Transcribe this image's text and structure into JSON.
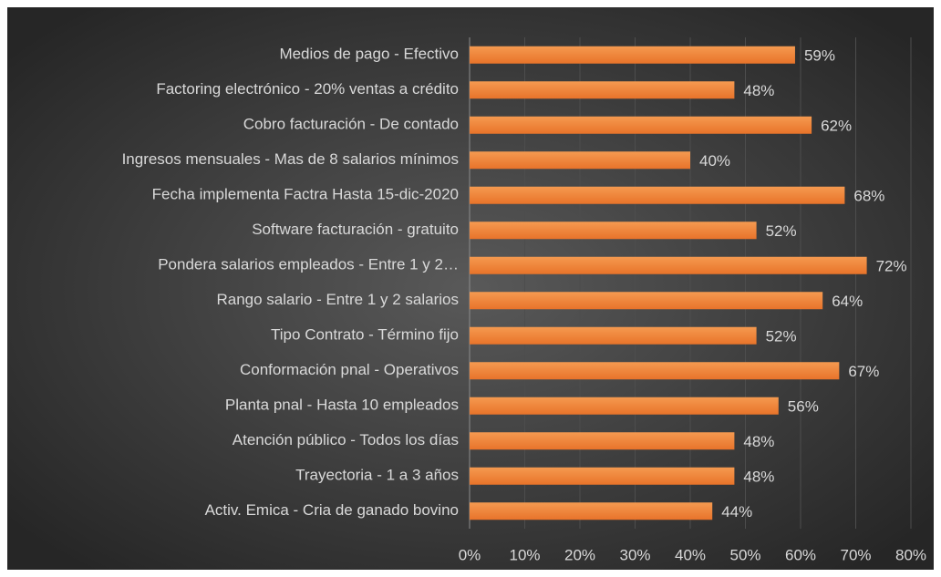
{
  "chart_data": {
    "type": "bar",
    "orientation": "horizontal",
    "categories": [
      "Medios de pago - Efectivo",
      "Factoring electrónico - 20% ventas a crédito",
      "Cobro facturación - De contado",
      "Ingresos mensuales - Mas de 8 salarios mínimos",
      "Fecha implementa Factra Hasta 15-dic-2020",
      "Software facturación - gratuito",
      "Pondera salarios empleados - Entre 1 y 2…",
      "Rango salario - Entre 1 y 2 salarios",
      "Tipo Contrato - Término fijo",
      "Conformación pnal - Operativos",
      "Planta pnal - Hasta 10 empleados",
      "Atención público - Todos los días",
      "Trayectoria - 1 a 3 años",
      "Activ. Emica - Cria de ganado bovino"
    ],
    "values": [
      59,
      48,
      62,
      40,
      68,
      52,
      72,
      64,
      52,
      67,
      56,
      48,
      48,
      44
    ],
    "value_labels": [
      "59%",
      "48%",
      "62%",
      "40%",
      "68%",
      "52%",
      "72%",
      "64%",
      "52%",
      "67%",
      "56%",
      "48%",
      "48%",
      "44%"
    ],
    "color": "#ed7d31",
    "xlim": [
      0,
      80
    ],
    "xticks": [
      {
        "value": 0,
        "label": "0%"
      },
      {
        "value": 10,
        "label": "10%"
      },
      {
        "value": 20,
        "label": "20%"
      },
      {
        "value": 30,
        "label": "30%"
      },
      {
        "value": 40,
        "label": "40%"
      },
      {
        "value": 50,
        "label": "50%"
      },
      {
        "value": 60,
        "label": "60%"
      },
      {
        "value": 70,
        "label": "70%"
      },
      {
        "value": 80,
        "label": "80%"
      }
    ],
    "grid": true
  }
}
